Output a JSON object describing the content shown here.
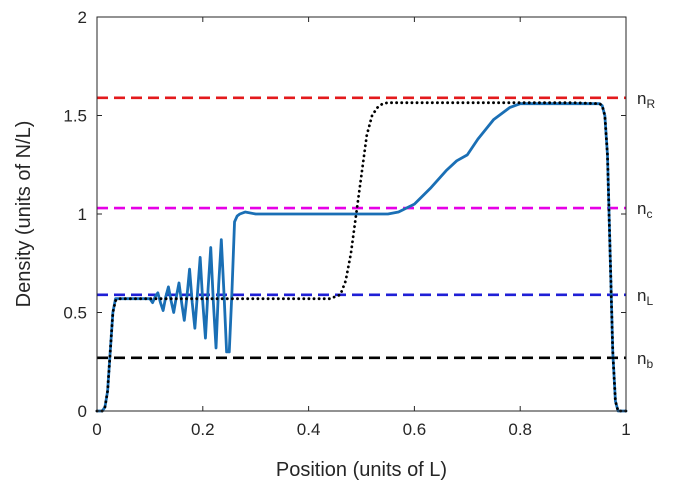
{
  "chart_data": {
    "type": "line",
    "xlabel": "Position (units of L)",
    "ylabel": "Density (units of N/L)",
    "xlim": [
      0,
      1
    ],
    "ylim": [
      0,
      2
    ],
    "xticks": [
      0,
      0.2,
      0.4,
      0.6,
      0.8,
      1
    ],
    "xtick_labels": [
      "0",
      "0.2",
      "0.4",
      "0.6",
      "0.8",
      "1"
    ],
    "yticks": [
      0,
      0.5,
      1,
      1.5,
      2
    ],
    "ytick_labels": [
      "0",
      "0.5",
      "1",
      "1.5",
      "2"
    ],
    "grid": false,
    "reference_lines": [
      {
        "label_main": "n",
        "label_sub": "R",
        "y": 1.59,
        "color": "#e31a1c",
        "style": "dashed"
      },
      {
        "label_main": "n",
        "label_sub": "c",
        "y": 1.03,
        "color": "#e600e6",
        "style": "dashed"
      },
      {
        "label_main": "n",
        "label_sub": "L",
        "y": 0.59,
        "color": "#1f1fd6",
        "style": "dashed"
      },
      {
        "label_main": "n",
        "label_sub": "b",
        "y": 0.27,
        "color": "#000000",
        "style": "dashed"
      }
    ],
    "series": [
      {
        "style": "solid",
        "color": "#1a6fb5",
        "x": [
          0,
          0.01,
          0.015,
          0.02,
          0.025,
          0.03,
          0.035,
          0.04,
          0.05,
          0.06,
          0.07,
          0.08,
          0.09,
          0.1,
          0.105,
          0.11,
          0.115,
          0.12,
          0.125,
          0.13,
          0.135,
          0.14,
          0.145,
          0.15,
          0.155,
          0.16,
          0.165,
          0.17,
          0.175,
          0.18,
          0.185,
          0.19,
          0.195,
          0.2,
          0.205,
          0.21,
          0.215,
          0.22,
          0.225,
          0.23,
          0.235,
          0.24,
          0.245,
          0.25,
          0.255,
          0.26,
          0.265,
          0.27,
          0.28,
          0.3,
          0.35,
          0.4,
          0.45,
          0.5,
          0.53,
          0.55,
          0.57,
          0.6,
          0.63,
          0.66,
          0.68,
          0.7,
          0.72,
          0.75,
          0.78,
          0.8,
          0.82,
          0.9,
          0.95,
          0.955,
          0.96,
          0.965,
          0.97,
          0.975,
          0.98,
          0.985,
          1
        ],
        "values": [
          0,
          0,
          0.02,
          0.1,
          0.3,
          0.5,
          0.57,
          0.57,
          0.57,
          0.57,
          0.57,
          0.57,
          0.57,
          0.57,
          0.55,
          0.58,
          0.6,
          0.55,
          0.51,
          0.58,
          0.63,
          0.56,
          0.5,
          0.58,
          0.65,
          0.55,
          0.46,
          0.58,
          0.72,
          0.55,
          0.42,
          0.6,
          0.78,
          0.55,
          0.37,
          0.62,
          0.83,
          0.55,
          0.32,
          0.64,
          0.87,
          0.6,
          0.3,
          0.3,
          0.6,
          0.96,
          0.99,
          1,
          1.01,
          1,
          1,
          1,
          1,
          1,
          1,
          1,
          1.01,
          1.05,
          1.13,
          1.22,
          1.27,
          1.3,
          1.38,
          1.48,
          1.54,
          1.56,
          1.56,
          1.56,
          1.56,
          1.55,
          1.5,
          1.3,
          0.8,
          0.3,
          0.05,
          0,
          0
        ]
      },
      {
        "style": "dotted",
        "color": "#000000",
        "x": [
          0,
          0.01,
          0.015,
          0.02,
          0.025,
          0.03,
          0.035,
          0.04,
          0.05,
          0.1,
          0.2,
          0.3,
          0.4,
          0.44,
          0.46,
          0.47,
          0.48,
          0.49,
          0.5,
          0.51,
          0.52,
          0.53,
          0.54,
          0.55,
          0.56,
          0.6,
          0.7,
          0.8,
          0.9,
          0.95,
          0.955,
          0.96,
          0.965,
          0.97,
          0.975,
          0.98,
          0.985,
          1
        ],
        "values": [
          0,
          0,
          0.02,
          0.1,
          0.3,
          0.5,
          0.56,
          0.57,
          0.57,
          0.57,
          0.57,
          0.57,
          0.57,
          0.57,
          0.59,
          0.66,
          0.8,
          1.0,
          1.2,
          1.4,
          1.5,
          1.54,
          1.56,
          1.565,
          1.565,
          1.565,
          1.565,
          1.565,
          1.565,
          1.56,
          1.55,
          1.5,
          1.3,
          0.8,
          0.3,
          0.05,
          0,
          0
        ]
      }
    ]
  }
}
